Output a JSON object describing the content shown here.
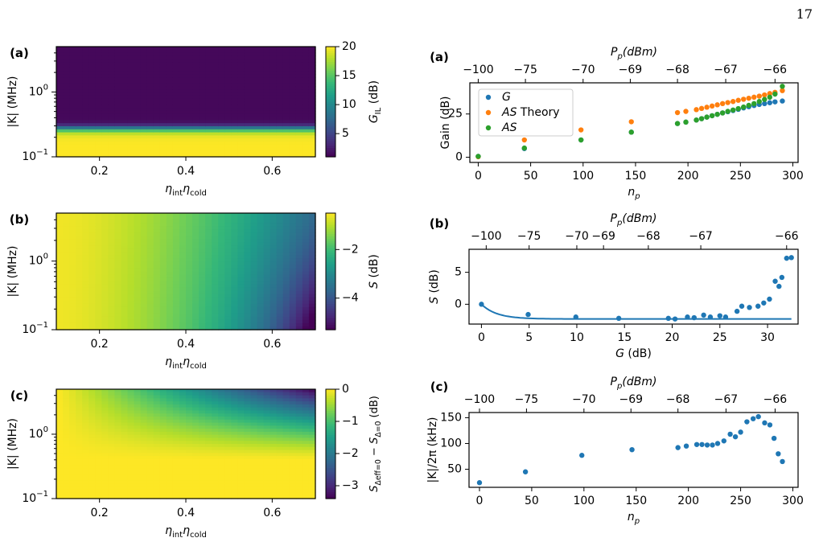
{
  "page_number": "17",
  "colormap": [
    "#440154",
    "#482878",
    "#3e4989",
    "#31688e",
    "#26828e",
    "#1f9e89",
    "#35b779",
    "#6ece58",
    "#b5de2b",
    "#fde725"
  ],
  "series_colors": {
    "blue": "#1f77b4",
    "orange": "#ff7f0e",
    "green": "#2ca02c"
  },
  "chart_data": [
    {
      "panel": "(a)",
      "type": "heatmap",
      "xlabel": "η_int η_cold",
      "ylabel": "|K| (MHz)",
      "xlim": [
        0.1,
        0.7
      ],
      "ylim": [
        0.1,
        5
      ],
      "yscale": "log",
      "xticks": [
        "0.2",
        "0.4",
        "0.6"
      ],
      "yticks": [
        "10^0",
        "10^-1"
      ],
      "colorbar": {
        "label": "G_IL (dB)",
        "range": [
          1,
          20
        ],
        "ticks": [
          "20",
          "15",
          "10",
          "5"
        ]
      },
      "description": "high gain (~20 dB) for |K| below ~0.27 MHz, drops sharply to ~1 dB above"
    },
    {
      "panel": "(b)",
      "type": "heatmap",
      "xlabel": "η_int η_cold",
      "ylabel": "|K| (MHz)",
      "xlim": [
        0.1,
        0.7
      ],
      "ylim": [
        0.1,
        5
      ],
      "yscale": "log",
      "xticks": [
        "0.2",
        "0.4",
        "0.6"
      ],
      "yticks": [
        "10^0",
        "10^-1"
      ],
      "colorbar": {
        "label": "S (dB)",
        "range": [
          -5.3,
          -0.5
        ],
        "ticks": [
          "−2",
          "−4"
        ]
      }
    },
    {
      "panel": "(c)",
      "type": "heatmap",
      "xlabel": "η_int η_cold",
      "ylabel": "|K| (MHz)",
      "xlim": [
        0.1,
        0.7
      ],
      "ylim": [
        0.1,
        5
      ],
      "yscale": "log",
      "xticks": [
        "0.2",
        "0.4",
        "0.6"
      ],
      "yticks": [
        "10^0",
        "10^-1"
      ],
      "colorbar": {
        "label": "S_Δeff=0 − S_Δ=0 (dB)",
        "range": [
          -3.4,
          0
        ],
        "ticks": [
          "0",
          "−1",
          "−2",
          "−3"
        ]
      }
    },
    {
      "panel": "(a)",
      "type": "scatter",
      "xlabel": "n_p",
      "ylabel": "Gain (dB)",
      "top_xlabel": "P_p(dBm)",
      "xlim": [
        -8,
        305
      ],
      "ylim": [
        -3,
        43
      ],
      "xticks": [
        0,
        50,
        100,
        150,
        200,
        250,
        300
      ],
      "yticks": [
        0,
        25
      ],
      "top_ticks": [
        {
          "n": 0,
          "label": "−100"
        },
        {
          "n": 45,
          "label": "−75"
        },
        {
          "n": 100,
          "label": "−70"
        },
        {
          "n": 145,
          "label": "−69"
        },
        {
          "n": 190,
          "label": "−68"
        },
        {
          "n": 236,
          "label": "−67"
        },
        {
          "n": 283,
          "label": "−66"
        }
      ],
      "legend": {
        "position": "top-left",
        "entries": [
          "G",
          "AS Theory",
          "AS"
        ]
      },
      "x": [
        0,
        44,
        98,
        146,
        190,
        198,
        208,
        213,
        218,
        223,
        228,
        233,
        238,
        243,
        248,
        253,
        258,
        263,
        268,
        273,
        278,
        283,
        290
      ],
      "series": [
        {
          "name": "G",
          "values": [
            0.5,
            5,
            10,
            14.5,
            19.5,
            20.3,
            21.5,
            22.3,
            23.2,
            24,
            24.8,
            25.6,
            26.3,
            27,
            27.7,
            28.5,
            29.2,
            29.9,
            30.5,
            31,
            31.5,
            32,
            32.5
          ]
        },
        {
          "name": "AS Theory",
          "values": [
            0.3,
            10,
            15.8,
            20.5,
            25.8,
            26.5,
            27.5,
            28.2,
            28.9,
            29.6,
            30.3,
            31,
            31.6,
            32.2,
            32.9,
            33.5,
            34.1,
            34.7,
            35.3,
            36,
            36.8,
            37.5,
            38.5
          ]
        },
        {
          "name": "AS",
          "values": [
            0.5,
            5.3,
            10,
            14.5,
            19.5,
            20.3,
            21.5,
            22.3,
            23.2,
            24,
            24.8,
            25.6,
            26.5,
            27.3,
            28.1,
            29,
            30,
            31,
            32.2,
            33.4,
            34.7,
            36.5,
            41
          ]
        }
      ]
    },
    {
      "panel": "(b)",
      "type": "scatter",
      "xlabel": "G (dB)",
      "ylabel": "S (dB)",
      "top_xlabel": "P_p(dBm)",
      "xlim": [
        -1.3,
        33.2
      ],
      "ylim": [
        -3.1,
        8.6
      ],
      "xticks": [
        0,
        5,
        10,
        15,
        20,
        25,
        30
      ],
      "yticks": [
        0,
        5
      ],
      "top_ticks": [
        {
          "x": 0.5,
          "label": "−100"
        },
        {
          "x": 5,
          "label": "−75"
        },
        {
          "x": 10,
          "label": "−70"
        },
        {
          "x": 12.8,
          "label": "−69"
        },
        {
          "x": 17.5,
          "label": "−68"
        },
        {
          "x": 23,
          "label": "−67"
        },
        {
          "x": 32,
          "label": "−66"
        }
      ],
      "points": {
        "x": [
          0,
          4.9,
          9.9,
          14.4,
          19.6,
          20.3,
          21.6,
          22.3,
          23.3,
          24,
          25,
          25.6,
          26.8,
          27.3,
          28.1,
          29,
          29.6,
          30.2,
          30.8,
          31.2,
          31.5,
          32,
          32.5
        ],
        "y": [
          0,
          -1.6,
          -2.0,
          -2.2,
          -2.2,
          -2.3,
          -2.0,
          -2.1,
          -1.7,
          -2.0,
          -1.8,
          -2.0,
          -1.1,
          -0.3,
          -0.5,
          -0.3,
          0.2,
          0.8,
          3.6,
          2.8,
          4.2,
          7.2,
          7.3
        ]
      },
      "fit_line": "S drops from 0 dB at G=0 to about −2.3 dB plateau"
    },
    {
      "panel": "(c)",
      "type": "scatter",
      "xlabel": "n_p",
      "ylabel": "|K|/2π (kHz)",
      "top_xlabel": "P_p(dBm)",
      "xlim": [
        -10,
        305
      ],
      "ylim": [
        15,
        160
      ],
      "xticks": [
        0,
        50,
        100,
        150,
        200,
        250,
        300
      ],
      "yticks": [
        50,
        100,
        150
      ],
      "top_ticks": [
        {
          "n": 0,
          "label": "−100"
        },
        {
          "n": 45,
          "label": "−75"
        },
        {
          "n": 100,
          "label": "−70"
        },
        {
          "n": 145,
          "label": "−69"
        },
        {
          "n": 190,
          "label": "−68"
        },
        {
          "n": 236,
          "label": "−67"
        },
        {
          "n": 283,
          "label": "−66"
        }
      ],
      "x": [
        0,
        44,
        98,
        146,
        190,
        198,
        208,
        213,
        218,
        223,
        228,
        234,
        240,
        245,
        250,
        256,
        262,
        267,
        273,
        278,
        282,
        286,
        290
      ],
      "y": [
        24,
        45,
        77,
        88,
        92,
        95,
        98,
        98,
        97,
        97,
        100,
        105,
        118,
        113,
        122,
        142,
        148,
        152,
        140,
        136,
        110,
        80,
        65
      ]
    }
  ]
}
